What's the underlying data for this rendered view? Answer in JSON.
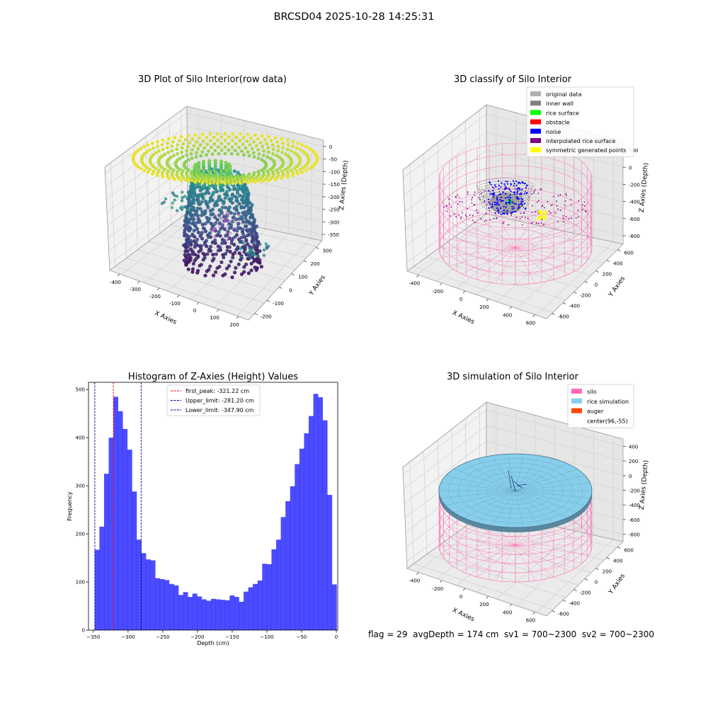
{
  "figure": {
    "suptitle": "BRCSD04 2025-10-28 14:25:31",
    "footer": "flag = 29  avgDepth = 174 cm  sv1 = 700~2300  sv2 = 700~2300"
  },
  "colors": {
    "silo": "#ff69b4",
    "rice": "#87ceeb",
    "auger": "#ff4500",
    "hist": "#0000ff",
    "first_peak_line": "#ff0000",
    "limit_line": "#00008b"
  },
  "chart_data": [
    {
      "type": "scatter",
      "projection": "3d",
      "title": "3D Plot of Silo Interior(row data)",
      "xlabel": "X Axies",
      "ylabel": "Y Axies",
      "zlabel": "Z Axies (Depth)",
      "x_ticks": [
        "-400",
        "-300",
        "-200",
        "-100",
        "0",
        "100",
        "200"
      ],
      "y_ticks": [
        "-200",
        "-100",
        "0",
        "100",
        "200",
        "300"
      ],
      "z_ticks": [
        "0",
        "-50",
        "-100",
        "-150",
        "-200",
        "-250",
        "-300",
        "-350"
      ],
      "xlim": [
        -430,
        230
      ],
      "ylim": [
        -210,
        310
      ],
      "zlim": [
        -375,
        0
      ],
      "colormap": "viridis"
    },
    {
      "type": "scatter",
      "projection": "3d",
      "title": "3D classify of Silo Interior",
      "xlabel": "X Axies",
      "ylabel": "Y Axies",
      "zlabel": "Z Axies (Depth)",
      "x_ticks": [
        "-400",
        "-200",
        "0",
        "200",
        "400",
        "600"
      ],
      "y_ticks": [
        "-600",
        "-400",
        "-200",
        "0",
        "200",
        "400",
        "600"
      ],
      "z_ticks": [
        "200",
        "0",
        "-200",
        "-400",
        "-600",
        "-800"
      ],
      "legend_position": "top-right",
      "legend": [
        {
          "label": "original data",
          "color": "#b0b0b0"
        },
        {
          "label": "inner wall",
          "color": "#808080"
        },
        {
          "label": "rice surface",
          "color": "#00ff00"
        },
        {
          "label": "obstacle",
          "color": "#ff0000"
        },
        {
          "label": "noise",
          "color": "#0000ff"
        },
        {
          "label": "interpolated rice surface",
          "color": "#800080"
        },
        {
          "label": "symmetric generated points",
          "color": "#ffff00"
        }
      ]
    },
    {
      "type": "bar",
      "title": "Histogram of Z-Axies (Height) Values",
      "xlabel": "Depth (cm)",
      "ylabel": "Frequency",
      "xlim": [
        -357,
        2
      ],
      "ylim": [
        0,
        515
      ],
      "x_ticks": [
        -350,
        -300,
        -250,
        -200,
        -150,
        -100,
        -50,
        0
      ],
      "y_ticks": [
        0,
        100,
        200,
        300,
        400,
        500
      ],
      "bin_width": 6.7,
      "bin_start": -348,
      "values": [
        167,
        215,
        325,
        400,
        485,
        455,
        418,
        375,
        288,
        188,
        160,
        147,
        145,
        108,
        106,
        104,
        96,
        93,
        73,
        79,
        69,
        76,
        70,
        64,
        61,
        65,
        64,
        63,
        62,
        72,
        69,
        59,
        80,
        89,
        96,
        103,
        138,
        137,
        168,
        188,
        235,
        268,
        299,
        345,
        377,
        409,
        445,
        491,
        484,
        436,
        281,
        95
      ],
      "vlines": [
        {
          "label": "first_peak: -321.22 cm",
          "x": -321.22,
          "color": "#ff0000"
        },
        {
          "label": "Upper_limit: -281.20 cm",
          "x": -281.2,
          "color": "#00008b"
        },
        {
          "label": "Lower_limit: -347.90 cm",
          "x": -347.9,
          "color": "#00008b"
        }
      ],
      "legend_position": "top-center",
      "grid": false
    },
    {
      "type": "surface",
      "projection": "3d",
      "title": "3D simulation of Silo Interior",
      "xlabel": "X Axies",
      "ylabel": "Y Axies",
      "zlabel": "Z Axies (Depth)",
      "x_ticks": [
        "-400",
        "-200",
        "0",
        "200",
        "400",
        "600"
      ],
      "y_ticks": [
        "-600",
        "-400",
        "-200",
        "0",
        "200",
        "400",
        "600"
      ],
      "z_ticks": [
        "400",
        "200",
        "0",
        "-200",
        "-400",
        "-600",
        "-800"
      ],
      "legend_position": "top-right",
      "legend": [
        {
          "label": "silo",
          "color": "#ff69b4"
        },
        {
          "label": "rice simulation",
          "color": "#87ceeb"
        },
        {
          "label": "auger",
          "color": "#ff4500"
        },
        {
          "label": "center(96,-55)",
          "color": "none"
        }
      ]
    }
  ]
}
